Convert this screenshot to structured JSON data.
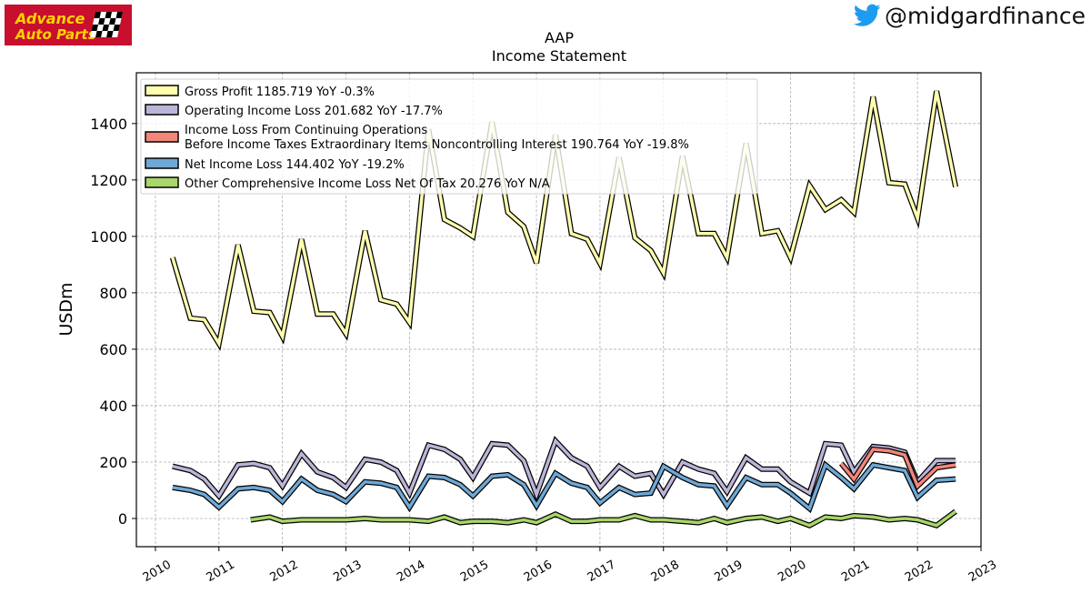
{
  "brand": {
    "logo_line1": "Advance",
    "logo_line2": "Auto Parts",
    "logo_bg": "#c8102e",
    "logo_fg": "#ffd200",
    "social_icon": "twitter-bird-icon",
    "twitter_color": "#1d9bf0",
    "handle": "@midgardfinance"
  },
  "chart_data": {
    "type": "line",
    "title": "AAP",
    "subtitle": "Income Statement",
    "ylabel": "USDm",
    "xlabel": "",
    "ylim": [
      -100,
      1580
    ],
    "xlim": [
      2009.7,
      2023.0
    ],
    "yticks": [
      0,
      200,
      400,
      600,
      800,
      1000,
      1200,
      1400
    ],
    "xticks": [
      "2010",
      "2011",
      "2012",
      "2013",
      "2014",
      "2015",
      "2016",
      "2017",
      "2018",
      "2019",
      "2020",
      "2021",
      "2022",
      "2023"
    ],
    "grid": true,
    "legend_position": "top-left",
    "series": [
      {
        "name": "Gross Profit",
        "legend_label": "Gross Profit  1185.719 YoY -0.3%",
        "color": "#ffffb0",
        "points": [
          [
            2010.27,
            925
          ],
          [
            2010.55,
            710
          ],
          [
            2010.77,
            705
          ],
          [
            2011.0,
            620
          ],
          [
            2011.3,
            970
          ],
          [
            2011.55,
            735
          ],
          [
            2011.8,
            730
          ],
          [
            2012.0,
            645
          ],
          [
            2012.3,
            990
          ],
          [
            2012.55,
            725
          ],
          [
            2012.8,
            725
          ],
          [
            2013.0,
            655
          ],
          [
            2013.3,
            1020
          ],
          [
            2013.55,
            775
          ],
          [
            2013.8,
            760
          ],
          [
            2014.0,
            695
          ],
          [
            2014.3,
            1380
          ],
          [
            2014.55,
            1060
          ],
          [
            2014.8,
            1030
          ],
          [
            2015.0,
            1000
          ],
          [
            2015.3,
            1405
          ],
          [
            2015.55,
            1085
          ],
          [
            2015.8,
            1035
          ],
          [
            2016.0,
            905
          ],
          [
            2016.3,
            1360
          ],
          [
            2016.55,
            1010
          ],
          [
            2016.8,
            990
          ],
          [
            2017.0,
            905
          ],
          [
            2017.3,
            1280
          ],
          [
            2017.55,
            995
          ],
          [
            2017.8,
            950
          ],
          [
            2018.0,
            870
          ],
          [
            2018.3,
            1285
          ],
          [
            2018.55,
            1010
          ],
          [
            2018.8,
            1010
          ],
          [
            2019.0,
            925
          ],
          [
            2019.3,
            1330
          ],
          [
            2019.55,
            1010
          ],
          [
            2019.8,
            1020
          ],
          [
            2020.0,
            925
          ],
          [
            2020.3,
            1180
          ],
          [
            2020.55,
            1095
          ],
          [
            2020.8,
            1130
          ],
          [
            2021.0,
            1085
          ],
          [
            2021.3,
            1495
          ],
          [
            2021.55,
            1190
          ],
          [
            2021.8,
            1185
          ],
          [
            2022.0,
            1065
          ],
          [
            2022.3,
            1515
          ],
          [
            2022.6,
            1175
          ]
        ]
      },
      {
        "name": "Operating Income Loss",
        "legend_label": "Operating Income Loss  201.682 YoY -17.7%",
        "color": "#bcb4d8",
        "points": [
          [
            2010.27,
            185
          ],
          [
            2010.55,
            170
          ],
          [
            2010.77,
            140
          ],
          [
            2011.0,
            80
          ],
          [
            2011.3,
            190
          ],
          [
            2011.55,
            195
          ],
          [
            2011.8,
            180
          ],
          [
            2012.0,
            115
          ],
          [
            2012.3,
            230
          ],
          [
            2012.55,
            165
          ],
          [
            2012.8,
            145
          ],
          [
            2013.0,
            110
          ],
          [
            2013.3,
            210
          ],
          [
            2013.55,
            200
          ],
          [
            2013.8,
            170
          ],
          [
            2014.0,
            90
          ],
          [
            2014.3,
            260
          ],
          [
            2014.55,
            245
          ],
          [
            2014.8,
            210
          ],
          [
            2015.0,
            145
          ],
          [
            2015.3,
            265
          ],
          [
            2015.55,
            260
          ],
          [
            2015.8,
            205
          ],
          [
            2016.0,
            85
          ],
          [
            2016.3,
            275
          ],
          [
            2016.55,
            215
          ],
          [
            2016.8,
            185
          ],
          [
            2017.0,
            110
          ],
          [
            2017.3,
            185
          ],
          [
            2017.55,
            150
          ],
          [
            2017.8,
            160
          ],
          [
            2018.0,
            85
          ],
          [
            2018.3,
            200
          ],
          [
            2018.55,
            175
          ],
          [
            2018.8,
            160
          ],
          [
            2019.0,
            95
          ],
          [
            2019.3,
            215
          ],
          [
            2019.55,
            175
          ],
          [
            2019.8,
            175
          ],
          [
            2020.0,
            130
          ],
          [
            2020.3,
            90
          ],
          [
            2020.55,
            265
          ],
          [
            2020.8,
            260
          ],
          [
            2021.0,
            165
          ],
          [
            2021.3,
            255
          ],
          [
            2021.55,
            250
          ],
          [
            2021.8,
            235
          ],
          [
            2022.0,
            130
          ],
          [
            2022.3,
            205
          ],
          [
            2022.6,
            205
          ]
        ]
      },
      {
        "name": "Income Loss From Continuing Operations Before Income Taxes Extraordinary Items Noncontrolling Interest",
        "legend_label_line1": "Income Loss From Continuing Operations",
        "legend_label_line2": "Before Income Taxes Extraordinary Items Noncontrolling Interest  190.764 YoY -19.8%",
        "color": "#f4857a",
        "points": [
          [
            2020.8,
            195
          ],
          [
            2021.0,
            140
          ],
          [
            2021.3,
            245
          ],
          [
            2021.55,
            240
          ],
          [
            2021.8,
            225
          ],
          [
            2022.0,
            115
          ],
          [
            2022.3,
            180
          ],
          [
            2022.6,
            190
          ]
        ]
      },
      {
        "name": "Net Income Loss",
        "legend_label": "Net Income Loss  144.402 YoY -19.2%",
        "color": "#6fa8d6",
        "points": [
          [
            2010.27,
            110
          ],
          [
            2010.55,
            100
          ],
          [
            2010.77,
            85
          ],
          [
            2011.0,
            40
          ],
          [
            2011.3,
            105
          ],
          [
            2011.55,
            110
          ],
          [
            2011.8,
            100
          ],
          [
            2012.0,
            60
          ],
          [
            2012.3,
            140
          ],
          [
            2012.55,
            100
          ],
          [
            2012.8,
            85
          ],
          [
            2013.0,
            60
          ],
          [
            2013.3,
            130
          ],
          [
            2013.55,
            125
          ],
          [
            2013.8,
            110
          ],
          [
            2014.0,
            40
          ],
          [
            2014.3,
            150
          ],
          [
            2014.55,
            145
          ],
          [
            2014.8,
            120
          ],
          [
            2015.0,
            80
          ],
          [
            2015.3,
            150
          ],
          [
            2015.55,
            155
          ],
          [
            2015.8,
            120
          ],
          [
            2016.0,
            45
          ],
          [
            2016.3,
            160
          ],
          [
            2016.55,
            125
          ],
          [
            2016.8,
            110
          ],
          [
            2017.0,
            55
          ],
          [
            2017.3,
            110
          ],
          [
            2017.55,
            85
          ],
          [
            2017.8,
            90
          ],
          [
            2018.0,
            185
          ],
          [
            2018.3,
            145
          ],
          [
            2018.55,
            120
          ],
          [
            2018.8,
            115
          ],
          [
            2019.0,
            45
          ],
          [
            2019.3,
            145
          ],
          [
            2019.55,
            120
          ],
          [
            2019.8,
            120
          ],
          [
            2020.0,
            90
          ],
          [
            2020.3,
            35
          ],
          [
            2020.55,
            190
          ],
          [
            2020.8,
            145
          ],
          [
            2021.0,
            105
          ],
          [
            2021.3,
            190
          ],
          [
            2021.55,
            180
          ],
          [
            2021.8,
            170
          ],
          [
            2022.0,
            75
          ],
          [
            2022.3,
            135
          ],
          [
            2022.6,
            140
          ]
        ]
      },
      {
        "name": "Other Comprehensive Income Loss Net Of Tax",
        "legend_label": "Other Comprehensive Income Loss Net Of Tax  20.276 YoY N/A",
        "color": "#a8d66a",
        "points": [
          [
            2011.5,
            -5
          ],
          [
            2011.8,
            5
          ],
          [
            2012.0,
            -10
          ],
          [
            2012.3,
            -5
          ],
          [
            2012.55,
            -5
          ],
          [
            2012.8,
            -5
          ],
          [
            2013.0,
            -5
          ],
          [
            2013.3,
            0
          ],
          [
            2013.55,
            -5
          ],
          [
            2013.8,
            -5
          ],
          [
            2014.0,
            -5
          ],
          [
            2014.3,
            -10
          ],
          [
            2014.55,
            5
          ],
          [
            2014.8,
            -15
          ],
          [
            2015.0,
            -10
          ],
          [
            2015.3,
            -10
          ],
          [
            2015.55,
            -15
          ],
          [
            2015.8,
            -5
          ],
          [
            2016.0,
            -15
          ],
          [
            2016.3,
            15
          ],
          [
            2016.55,
            -10
          ],
          [
            2016.8,
            -10
          ],
          [
            2017.0,
            -5
          ],
          [
            2017.3,
            -5
          ],
          [
            2017.55,
            10
          ],
          [
            2017.8,
            -5
          ],
          [
            2018.0,
            -5
          ],
          [
            2018.3,
            -10
          ],
          [
            2018.55,
            -15
          ],
          [
            2018.8,
            0
          ],
          [
            2019.0,
            -15
          ],
          [
            2019.3,
            0
          ],
          [
            2019.55,
            5
          ],
          [
            2019.8,
            -10
          ],
          [
            2020.0,
            0
          ],
          [
            2020.3,
            -25
          ],
          [
            2020.55,
            5
          ],
          [
            2020.8,
            0
          ],
          [
            2021.0,
            10
          ],
          [
            2021.3,
            5
          ],
          [
            2021.55,
            -5
          ],
          [
            2021.8,
            0
          ],
          [
            2022.0,
            -5
          ],
          [
            2022.3,
            -25
          ],
          [
            2022.6,
            25
          ]
        ]
      }
    ]
  }
}
